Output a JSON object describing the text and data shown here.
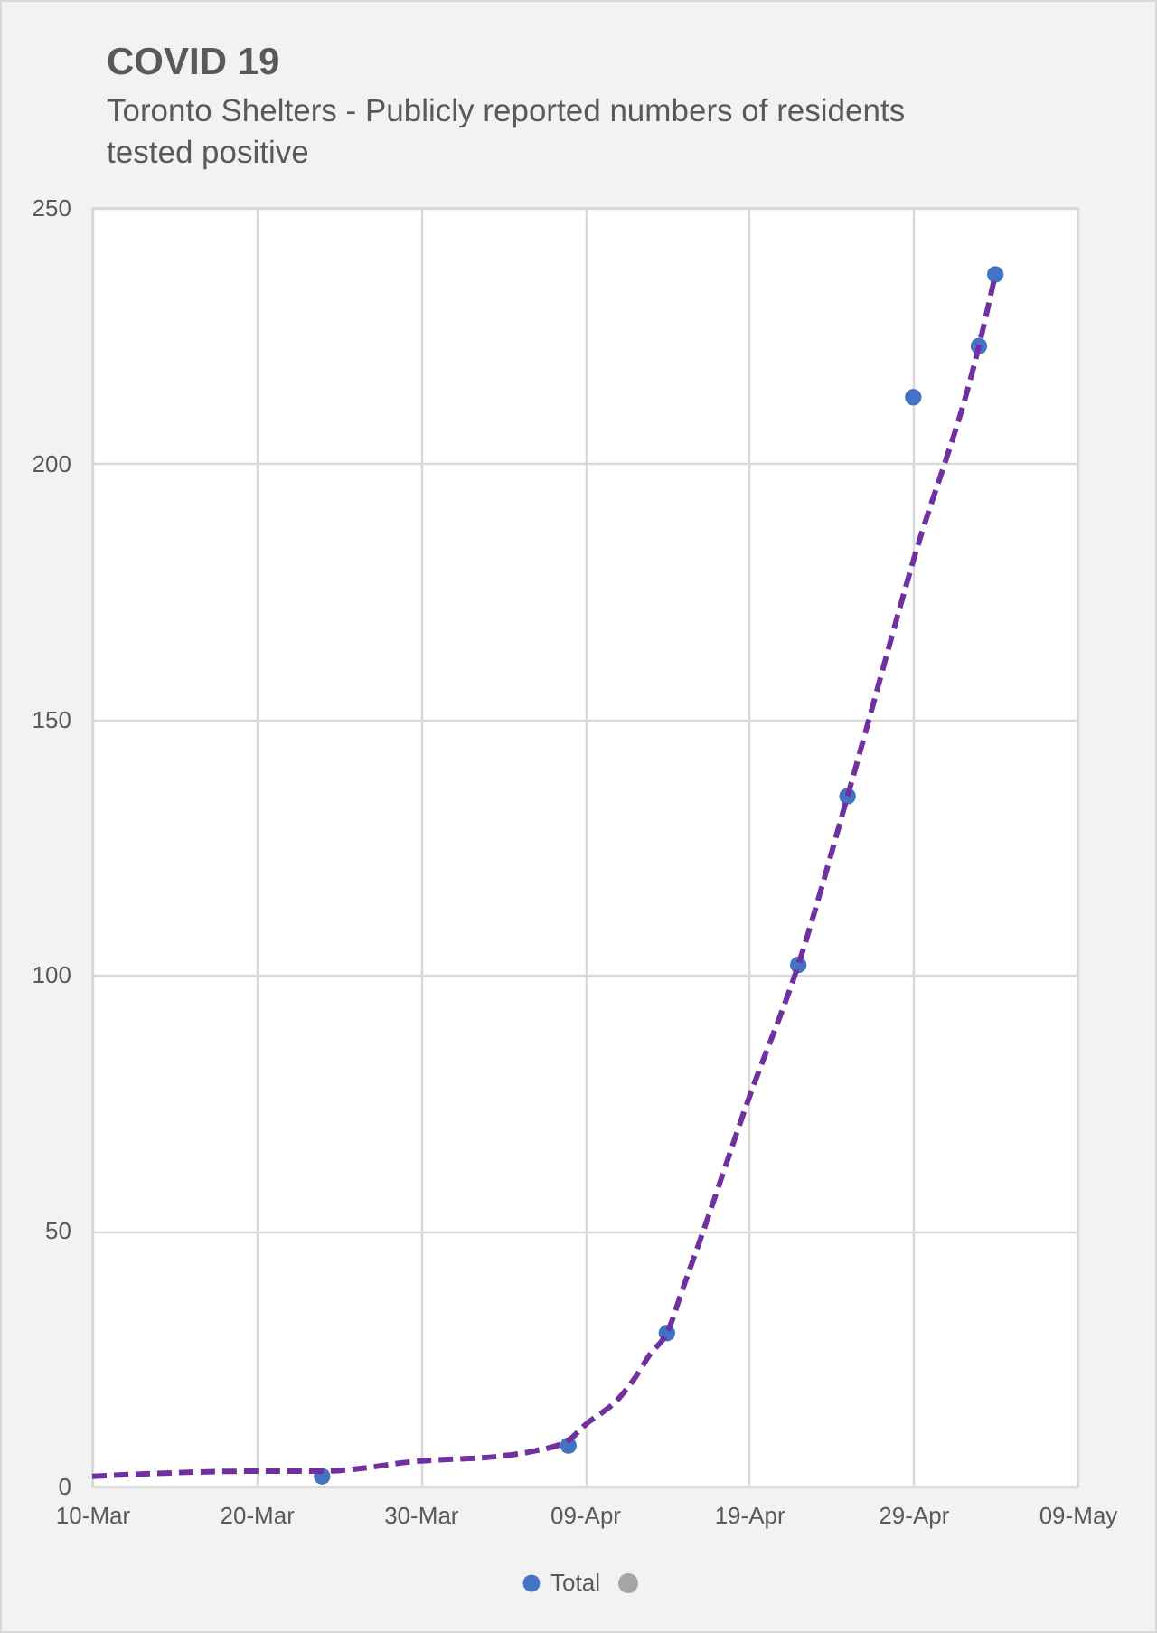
{
  "chart_data": {
    "type": "scatter",
    "title": "COVID 19",
    "subtitle": "Toronto Shelters - Publicly reported numbers of residents tested positive",
    "series": [
      {
        "name": "Total",
        "color": "#4472c4",
        "marker": "circle",
        "x": [
          "--03-24",
          "--04-08",
          "--04-14",
          "--04-22",
          "--04-25",
          "--04-29",
          "--05-03",
          "--05-04"
        ],
        "values": [
          2,
          8,
          30,
          102,
          135,
          213,
          223,
          237
        ]
      },
      {
        "type": "line",
        "color": "#7030a0",
        "line_style": "dashed",
        "marker": "none",
        "x": [
          "--03-10",
          "--03-20",
          "--03-24",
          "--03-30",
          "--04-04",
          "--04-06",
          "--04-08",
          "--04-09",
          "--04-11",
          "--04-12",
          "--04-13",
          "--04-14",
          "--04-15",
          "--04-16",
          "--04-19",
          "--04-22",
          "--04-25",
          "--04-29",
          "--05-03",
          "--05-04"
        ],
        "values": [
          2,
          3,
          3,
          5,
          6,
          7,
          9,
          12,
          17,
          21,
          26,
          30,
          39,
          48,
          76,
          102,
          135,
          181,
          223,
          237
        ]
      }
    ],
    "xlim": [
      "--03-10",
      "--05-09"
    ],
    "xticks": [
      {
        "value": "--03-10",
        "label": "10-Mar"
      },
      {
        "value": "--03-20",
        "label": "20-Mar"
      },
      {
        "value": "--03-30",
        "label": "30-Mar"
      },
      {
        "value": "--04-09",
        "label": "09-Apr"
      },
      {
        "value": "--04-19",
        "label": "19-Apr"
      },
      {
        "value": "--04-29",
        "label": "29-Apr"
      },
      {
        "value": "--05-09",
        "label": "09-May"
      }
    ],
    "ylim": [
      0,
      250
    ],
    "yticks": [
      0,
      50,
      100,
      150,
      200,
      250
    ],
    "grid": true,
    "legend": "bottom"
  }
}
